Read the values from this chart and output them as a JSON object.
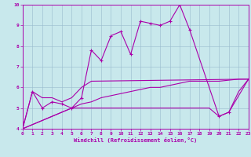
{
  "xlabel": "Windchill (Refroidissement éolien,°C)",
  "xlim": [
    0,
    23
  ],
  "ylim": [
    4,
    10
  ],
  "xticks": [
    0,
    1,
    2,
    3,
    4,
    5,
    6,
    7,
    8,
    9,
    10,
    11,
    12,
    13,
    14,
    15,
    16,
    17,
    18,
    19,
    20,
    21,
    22,
    23
  ],
  "yticks": [
    4,
    5,
    6,
    7,
    8,
    9,
    10
  ],
  "bg_color": "#c8e8ec",
  "line_color": "#aa00aa",
  "grid_color": "#99bbcc",
  "line1_x": [
    0,
    1,
    2,
    3,
    4,
    5,
    6,
    7,
    8,
    9,
    10,
    11,
    12,
    13,
    14,
    15,
    16,
    17,
    20,
    21,
    23
  ],
  "line1_y": [
    4.0,
    5.8,
    5.0,
    5.3,
    5.2,
    5.0,
    5.5,
    7.8,
    7.3,
    8.5,
    8.7,
    7.6,
    9.2,
    9.1,
    9.0,
    9.2,
    10.0,
    8.8,
    4.6,
    4.8,
    6.4
  ],
  "line2_x": [
    0,
    1,
    2,
    3,
    4,
    5,
    6,
    7,
    23
  ],
  "line2_y": [
    4.0,
    5.8,
    5.5,
    5.5,
    5.3,
    5.5,
    6.0,
    6.3,
    6.4
  ],
  "line3_x": [
    0,
    5,
    6,
    7,
    8,
    9,
    10,
    11,
    12,
    13,
    14,
    15,
    16,
    17,
    18,
    19,
    20,
    21,
    22,
    23
  ],
  "line3_y": [
    4.0,
    5.0,
    5.2,
    5.3,
    5.5,
    5.6,
    5.7,
    5.8,
    5.9,
    6.0,
    6.0,
    6.1,
    6.2,
    6.3,
    6.3,
    6.3,
    6.3,
    6.35,
    6.4,
    6.4
  ],
  "line4_x": [
    0,
    5,
    19,
    20,
    21,
    22,
    23
  ],
  "line4_y": [
    4.0,
    5.0,
    5.0,
    4.6,
    4.8,
    5.8,
    6.4
  ]
}
